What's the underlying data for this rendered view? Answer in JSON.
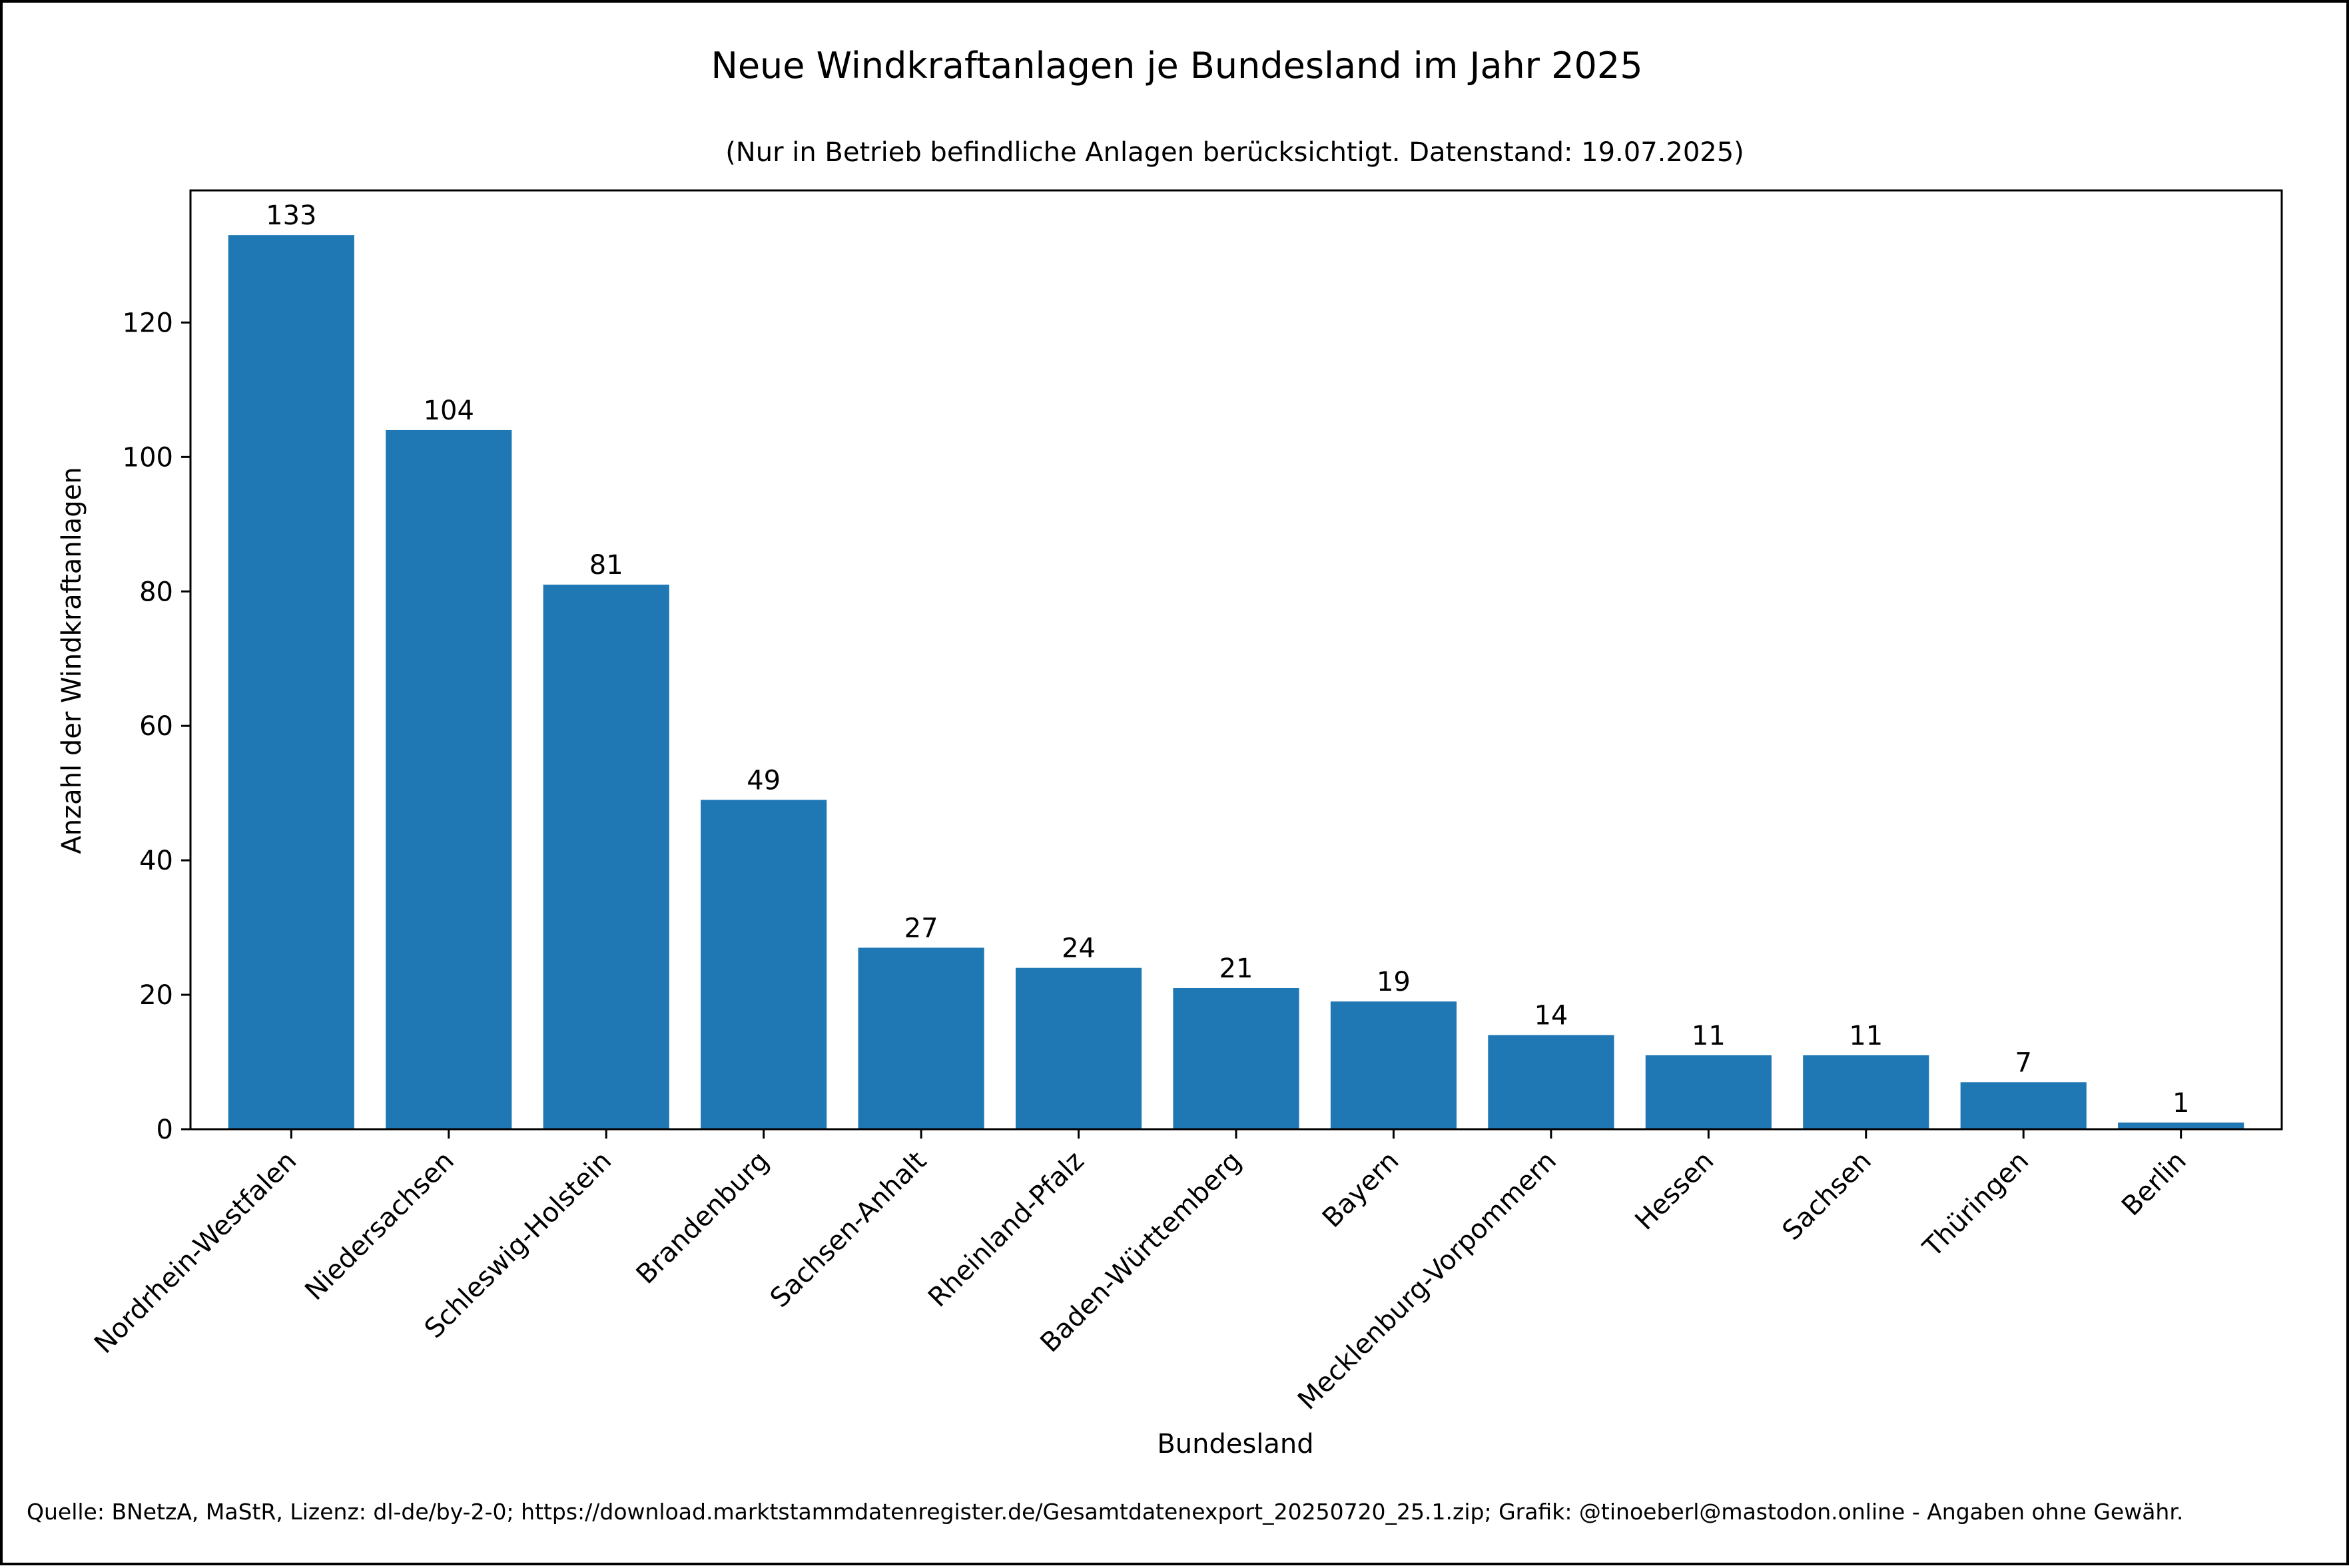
{
  "chart_data": {
    "type": "bar",
    "title": "Neue Windkraftanlagen je Bundesland im Jahr 2025",
    "subtitle": "(Nur in Betrieb befindliche Anlagen berücksichtigt. Datenstand: 19.07.2025)",
    "xlabel": "Bundesland",
    "ylabel": "Anzahl der Windkraftanlagen",
    "categories": [
      "Nordrhein-Westfalen",
      "Niedersachsen",
      "Schleswig-Holstein",
      "Brandenburg",
      "Sachsen-Anhalt",
      "Rheinland-Pfalz",
      "Baden-Württemberg",
      "Bayern",
      "Mecklenburg-Vorpommern",
      "Hessen",
      "Sachsen",
      "Thüringen",
      "Berlin"
    ],
    "values": [
      133,
      104,
      81,
      49,
      27,
      24,
      21,
      19,
      14,
      11,
      11,
      7,
      1
    ],
    "ylim": [
      0,
      139.65
    ],
    "yticks": [
      0,
      20,
      40,
      60,
      80,
      100,
      120
    ],
    "bar_color": "#1f77b4",
    "grid": false,
    "legend": "none"
  },
  "source_note": "Quelle: BNetzA, MaStR, Lizenz: dl-de/by-2-0; https://download.marktstammdatenregister.de/Gesamtdatenexport_20250720_25.1.zip; Grafik: @tinoeberl@mastodon.online - Angaben ohne Gewähr."
}
